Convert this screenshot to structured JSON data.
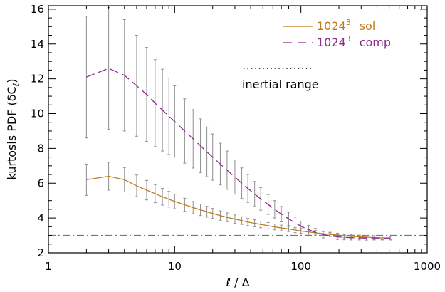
{
  "chart_data": {
    "type": "line",
    "xlabel": "ℓ / Δ",
    "ylabel": "kurtosis PDF (δC",
    "ylabel_sub": "ℓ",
    "ylabel_close": ")",
    "xscale": "log",
    "xlim": [
      1,
      1000
    ],
    "ylim": [
      2,
      16.2
    ],
    "x_ticks": [
      1,
      10,
      100,
      1000
    ],
    "x_tick_labels": [
      "1",
      "10",
      "100",
      "1000"
    ],
    "y_ticks": [
      2,
      4,
      6,
      8,
      10,
      12,
      14,
      16
    ],
    "y_tick_labels": [
      "2",
      "4",
      "6",
      "8",
      "10",
      "12",
      "14",
      "16"
    ],
    "reference_line": {
      "y": 3,
      "color": "#6f6fc8",
      "style": "dash-dot"
    },
    "annotation": {
      "text": "inertial range",
      "style": "dotted",
      "x_range": [
        35,
        125
      ]
    },
    "legend": {
      "position": "top-right"
    },
    "series": [
      {
        "name": "1024",
        "name_sup": "3",
        "suffix": "sol",
        "color": "#c07a1a",
        "style": "solid",
        "x": [
          2,
          3,
          4,
          5,
          6,
          7,
          8,
          9,
          10,
          12,
          14,
          16,
          18,
          20,
          23,
          26,
          30,
          34,
          38,
          43,
          48,
          55,
          62,
          70,
          80,
          90,
          100,
          115,
          130,
          150,
          170,
          195,
          220,
          250,
          290,
          330,
          380,
          440,
          510
        ],
        "y": [
          6.2,
          6.4,
          6.2,
          5.85,
          5.6,
          5.4,
          5.22,
          5.08,
          4.95,
          4.76,
          4.6,
          4.47,
          4.36,
          4.26,
          4.14,
          4.04,
          3.94,
          3.85,
          3.77,
          3.7,
          3.63,
          3.56,
          3.49,
          3.43,
          3.37,
          3.31,
          3.26,
          3.2,
          3.15,
          3.1,
          3.06,
          3.02,
          2.98,
          2.95,
          2.92,
          2.9,
          2.88,
          2.86,
          2.85
        ],
        "err": [
          0.9,
          0.8,
          0.7,
          0.62,
          0.56,
          0.52,
          0.48,
          0.45,
          0.42,
          0.38,
          0.35,
          0.33,
          0.31,
          0.29,
          0.27,
          0.25,
          0.24,
          0.22,
          0.21,
          0.2,
          0.19,
          0.18,
          0.17,
          0.16,
          0.15,
          0.15,
          0.14,
          0.13,
          0.13,
          0.12,
          0.12,
          0.11,
          0.11,
          0.1,
          0.1,
          0.1,
          0.1,
          0.1,
          0.1
        ]
      },
      {
        "name": "1024",
        "name_sup": "3",
        "suffix": "comp",
        "color": "#8a2a8a",
        "style": "dashed",
        "x": [
          2,
          3,
          4,
          5,
          6,
          7,
          8,
          9,
          10,
          12,
          14,
          16,
          18,
          20,
          23,
          26,
          30,
          34,
          38,
          43,
          48,
          55,
          62,
          70,
          80,
          90,
          100,
          115,
          130,
          150,
          170,
          195,
          220,
          250,
          290,
          330,
          380,
          440,
          510
        ],
        "y": [
          12.1,
          12.6,
          12.2,
          11.6,
          11.1,
          10.6,
          10.2,
          9.85,
          9.55,
          9.0,
          8.55,
          8.15,
          7.8,
          7.5,
          7.1,
          6.75,
          6.35,
          6.0,
          5.7,
          5.38,
          5.1,
          4.78,
          4.5,
          4.22,
          3.95,
          3.72,
          3.53,
          3.33,
          3.18,
          3.05,
          2.97,
          2.92,
          2.89,
          2.87,
          2.86,
          2.85,
          2.85,
          2.85,
          2.85
        ],
        "err": [
          3.5,
          3.5,
          3.2,
          2.9,
          2.7,
          2.5,
          2.35,
          2.2,
          2.05,
          1.85,
          1.68,
          1.55,
          1.43,
          1.33,
          1.2,
          1.1,
          0.98,
          0.88,
          0.8,
          0.72,
          0.65,
          0.57,
          0.5,
          0.44,
          0.38,
          0.33,
          0.29,
          0.25,
          0.22,
          0.19,
          0.17,
          0.15,
          0.14,
          0.13,
          0.12,
          0.12,
          0.11,
          0.11,
          0.11
        ]
      }
    ]
  }
}
